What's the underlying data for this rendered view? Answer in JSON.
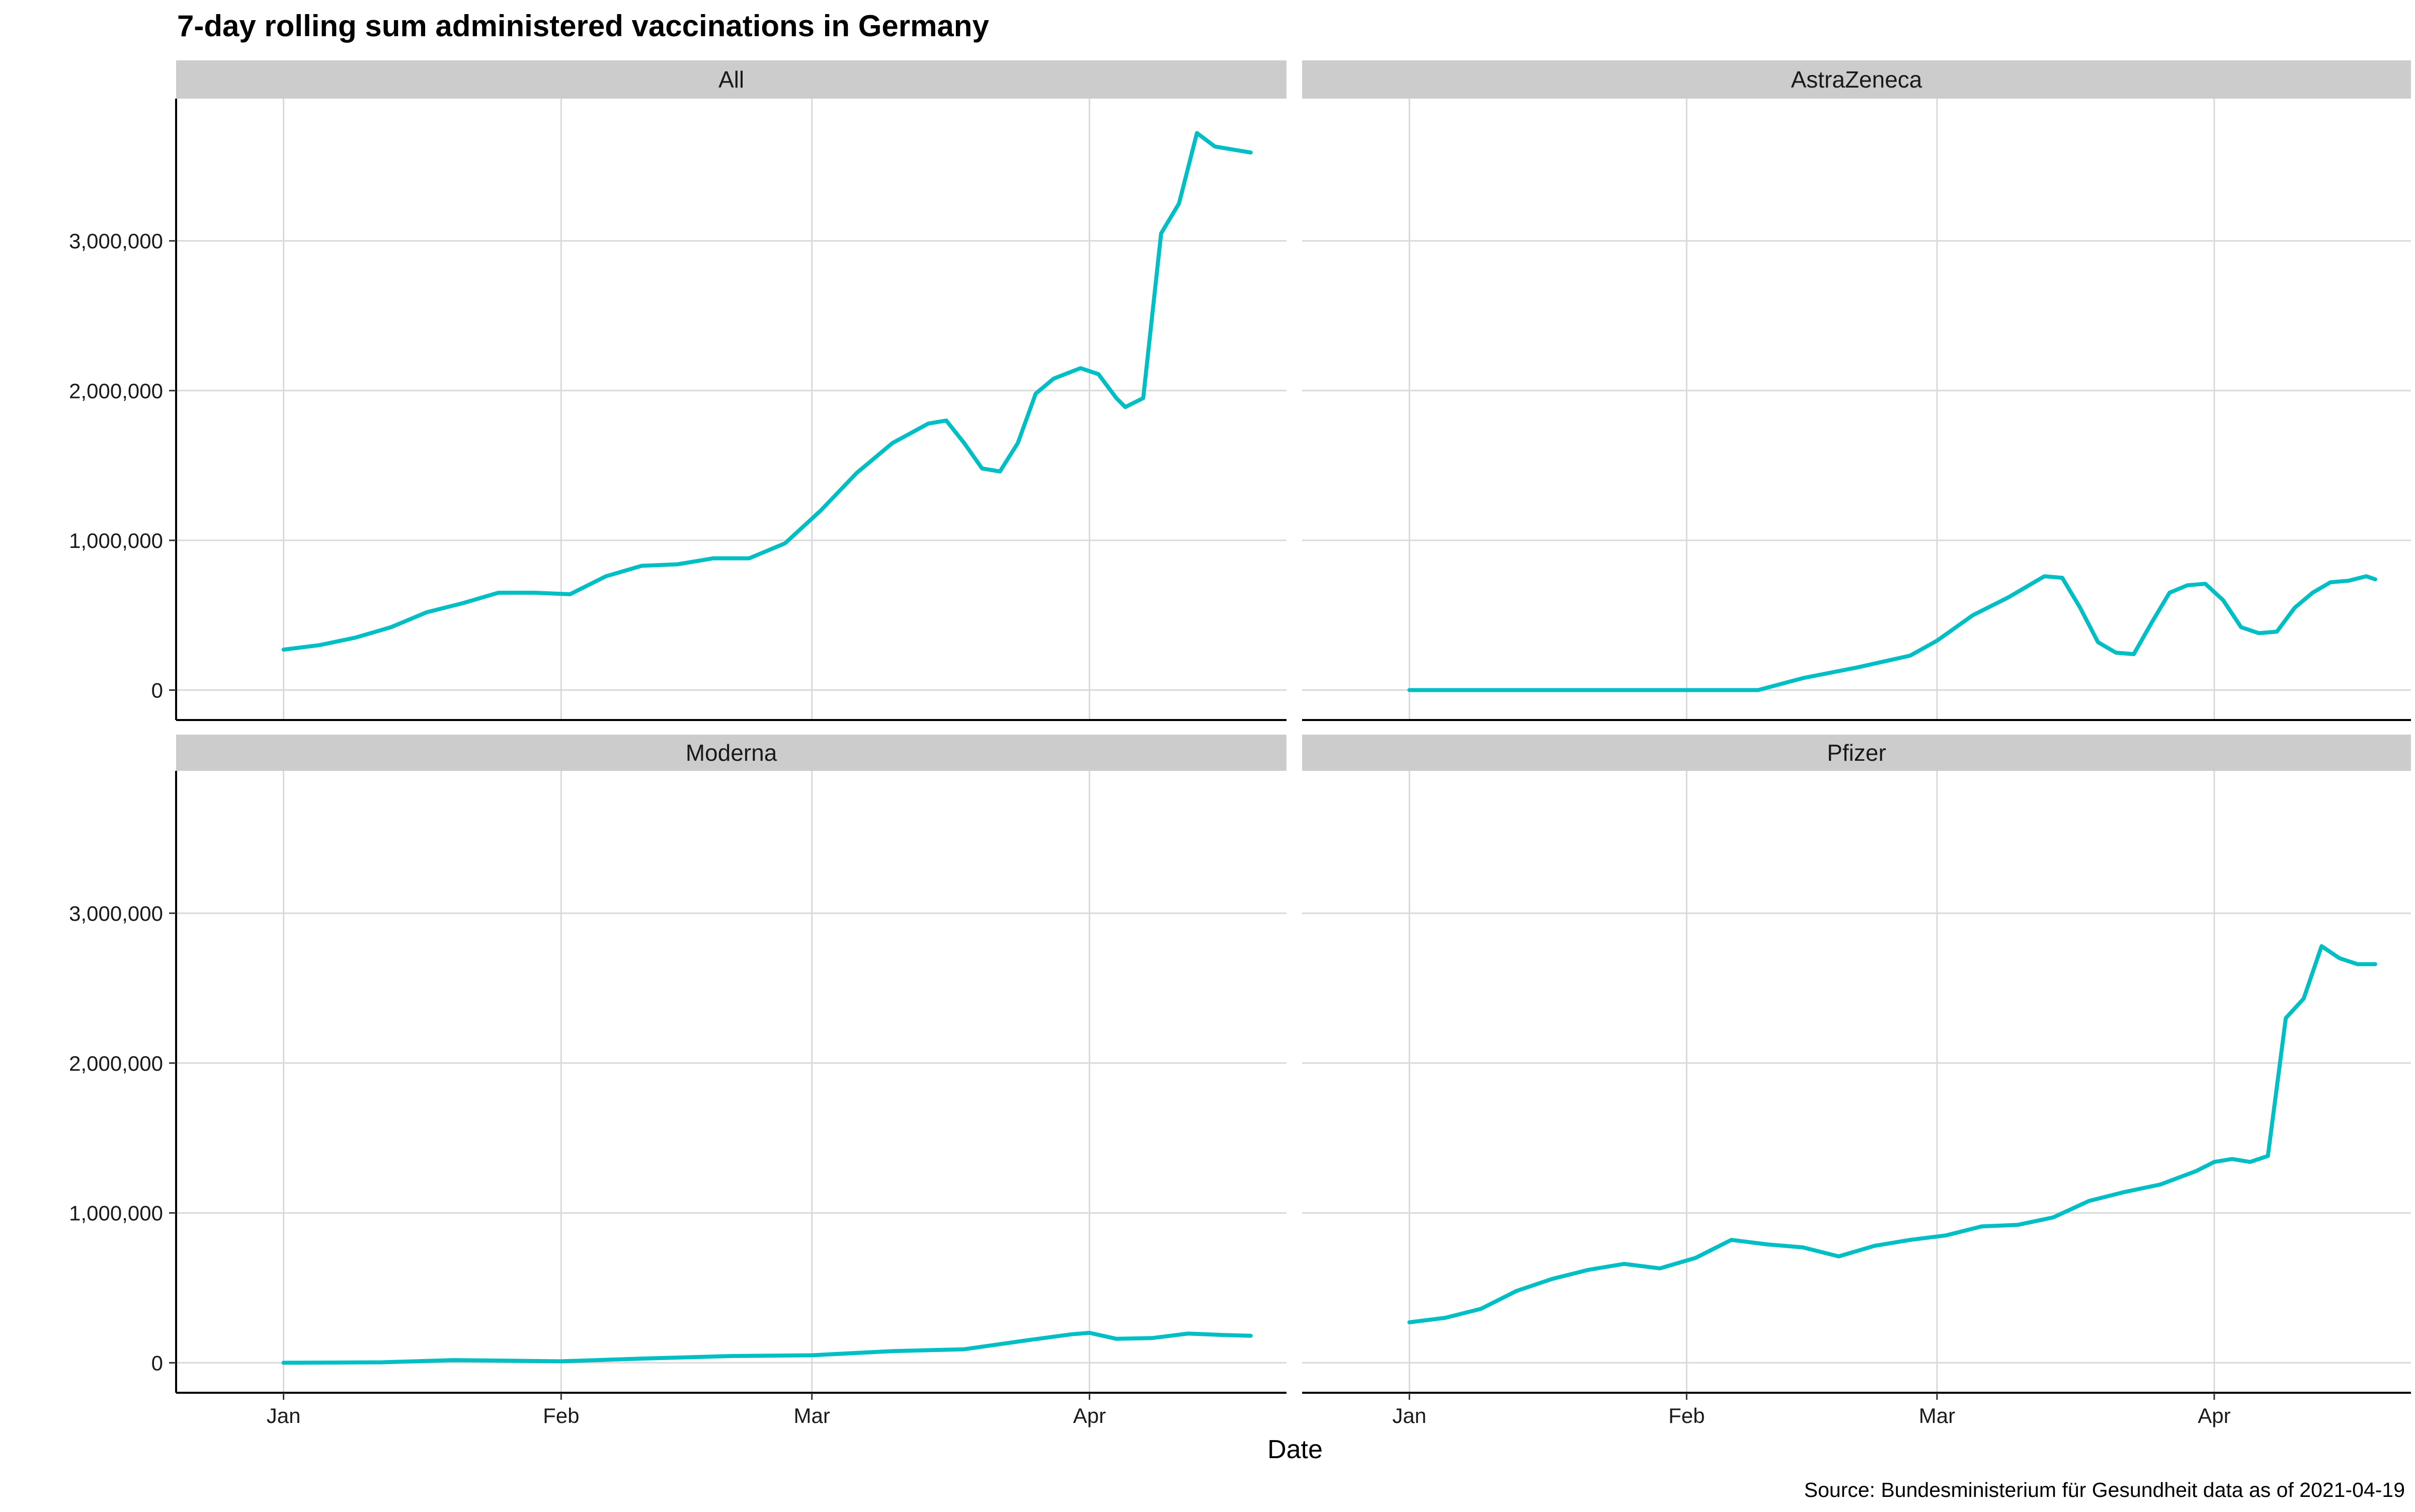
{
  "chart_data": {
    "type": "line",
    "title": "7-day rolling sum administered vaccinations in Germany",
    "xlabel": "Date",
    "ylabel": "",
    "caption": "Source: Bundesministerium für Gesundheit data as of 2021-04-19",
    "xlim": [
      "2020-12-20",
      "2021-04-23"
    ],
    "ylim": [
      -200000,
      3950000
    ],
    "x_ticks": [
      {
        "date": "2021-01-01",
        "label": "Jan"
      },
      {
        "date": "2021-02-01",
        "label": "Feb"
      },
      {
        "date": "2021-03-01",
        "label": "Mar"
      },
      {
        "date": "2021-04-01",
        "label": "Apr"
      }
    ],
    "y_ticks": [
      {
        "value": 0,
        "label": "0"
      },
      {
        "value": 1000000,
        "label": "1,000,000"
      },
      {
        "value": 2000000,
        "label": "2,000,000"
      },
      {
        "value": 3000000,
        "label": "3,000,000"
      }
    ],
    "grid": true,
    "line_color": "#00BFC4",
    "strip_color": "#CCCCCC",
    "grid_color": "#D9D9D9",
    "facets": [
      {
        "label": "All",
        "x": [
          "2021-01-01",
          "2021-01-05",
          "2021-01-09",
          "2021-01-13",
          "2021-01-17",
          "2021-01-21",
          "2021-01-25",
          "2021-01-29",
          "2021-02-02",
          "2021-02-06",
          "2021-02-10",
          "2021-02-14",
          "2021-02-18",
          "2021-02-22",
          "2021-02-26",
          "2021-03-02",
          "2021-03-06",
          "2021-03-10",
          "2021-03-14",
          "2021-03-16",
          "2021-03-18",
          "2021-03-20",
          "2021-03-22",
          "2021-03-24",
          "2021-03-26",
          "2021-03-28",
          "2021-03-31",
          "2021-04-02",
          "2021-04-04",
          "2021-04-05",
          "2021-04-07",
          "2021-04-09",
          "2021-04-11",
          "2021-04-13",
          "2021-04-15",
          "2021-04-17",
          "2021-04-19"
        ],
        "y": [
          270000,
          300000,
          350000,
          420000,
          520000,
          580000,
          650000,
          650000,
          640000,
          760000,
          830000,
          840000,
          880000,
          880000,
          980000,
          1200000,
          1450000,
          1650000,
          1780000,
          1800000,
          1650000,
          1480000,
          1460000,
          1650000,
          1980000,
          2080000,
          2150000,
          2110000,
          1950000,
          1890000,
          1950000,
          3050000,
          3250000,
          3720000,
          3630000,
          3610000,
          3590000
        ]
      },
      {
        "label": "AstraZeneca",
        "x": [
          "2021-01-01",
          "2021-01-15",
          "2021-02-01",
          "2021-02-09",
          "2021-02-14",
          "2021-02-20",
          "2021-02-26",
          "2021-03-01",
          "2021-03-05",
          "2021-03-09",
          "2021-03-13",
          "2021-03-15",
          "2021-03-17",
          "2021-03-19",
          "2021-03-21",
          "2021-03-23",
          "2021-03-25",
          "2021-03-27",
          "2021-03-29",
          "2021-03-31",
          "2021-04-02",
          "2021-04-04",
          "2021-04-06",
          "2021-04-08",
          "2021-04-10",
          "2021-04-12",
          "2021-04-14",
          "2021-04-16",
          "2021-04-18",
          "2021-04-19"
        ],
        "y": [
          0,
          0,
          0,
          0,
          80000,
          150000,
          230000,
          330000,
          500000,
          620000,
          760000,
          750000,
          550000,
          320000,
          250000,
          240000,
          450000,
          650000,
          700000,
          710000,
          600000,
          420000,
          380000,
          390000,
          550000,
          650000,
          720000,
          730000,
          760000,
          740000
        ]
      },
      {
        "label": "Moderna",
        "x": [
          "2021-01-01",
          "2021-01-12",
          "2021-01-20",
          "2021-02-01",
          "2021-02-10",
          "2021-02-20",
          "2021-03-01",
          "2021-03-10",
          "2021-03-18",
          "2021-03-25",
          "2021-03-30",
          "2021-04-01",
          "2021-04-04",
          "2021-04-08",
          "2021-04-12",
          "2021-04-16",
          "2021-04-19"
        ],
        "y": [
          0,
          3000,
          18000,
          10000,
          28000,
          45000,
          50000,
          78000,
          90000,
          150000,
          190000,
          200000,
          160000,
          165000,
          195000,
          185000,
          180000
        ]
      },
      {
        "label": "Pfizer",
        "x": [
          "2021-01-01",
          "2021-01-05",
          "2021-01-09",
          "2021-01-13",
          "2021-01-17",
          "2021-01-21",
          "2021-01-25",
          "2021-01-29",
          "2021-02-02",
          "2021-02-06",
          "2021-02-10",
          "2021-02-14",
          "2021-02-18",
          "2021-02-22",
          "2021-02-26",
          "2021-03-02",
          "2021-03-06",
          "2021-03-10",
          "2021-03-14",
          "2021-03-18",
          "2021-03-22",
          "2021-03-26",
          "2021-03-30",
          "2021-04-01",
          "2021-04-03",
          "2021-04-05",
          "2021-04-07",
          "2021-04-09",
          "2021-04-11",
          "2021-04-13",
          "2021-04-15",
          "2021-04-17",
          "2021-04-19"
        ],
        "y": [
          270000,
          300000,
          360000,
          480000,
          560000,
          620000,
          660000,
          630000,
          700000,
          820000,
          790000,
          770000,
          710000,
          780000,
          820000,
          850000,
          910000,
          920000,
          970000,
          1080000,
          1140000,
          1190000,
          1280000,
          1340000,
          1360000,
          1340000,
          1380000,
          2300000,
          2430000,
          2780000,
          2700000,
          2660000,
          2660000
        ]
      }
    ]
  }
}
